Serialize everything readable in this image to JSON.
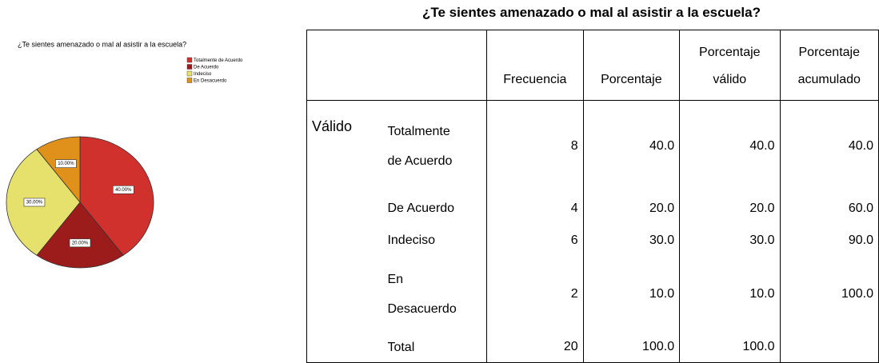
{
  "chart_data": {
    "type": "pie",
    "title": "¿Te sientes amenazado o mal al asistir a la escuela?",
    "categories": [
      "Totalmente de Acuerdo",
      "De Acuerdo",
      "Indeciso",
      "En Desacuerdo"
    ],
    "values": [
      40,
      20,
      30,
      10
    ],
    "value_labels": [
      "40.00%",
      "20.00%",
      "30.00%",
      "10.00%"
    ],
    "colors": [
      "#d0312d",
      "#9c1c1c",
      "#e6e06c",
      "#e0911c"
    ]
  },
  "table": {
    "title": "¿Te sientes amenazado o mal al asistir a la escuela?",
    "header": [
      "Frecuencia",
      "Porcentaje",
      "Porcentaje válido",
      "Porcentaje acumulado"
    ],
    "group": "Válido",
    "rows": [
      {
        "label": "Totalmente de Acuerdo",
        "values": [
          "8",
          "40.0",
          "40.0",
          "40.0"
        ]
      },
      {
        "label": "De Acuerdo",
        "values": [
          "4",
          "20.0",
          "20.0",
          "60.0"
        ]
      },
      {
        "label": "Indeciso",
        "values": [
          "6",
          "30.0",
          "30.0",
          "90.0"
        ]
      },
      {
        "label": "En Desacuerdo",
        "values": [
          "2",
          "10.0",
          "10.0",
          "100.0"
        ]
      },
      {
        "label": "Total",
        "values": [
          "20",
          "100.0",
          "100.0"
        ]
      }
    ]
  }
}
